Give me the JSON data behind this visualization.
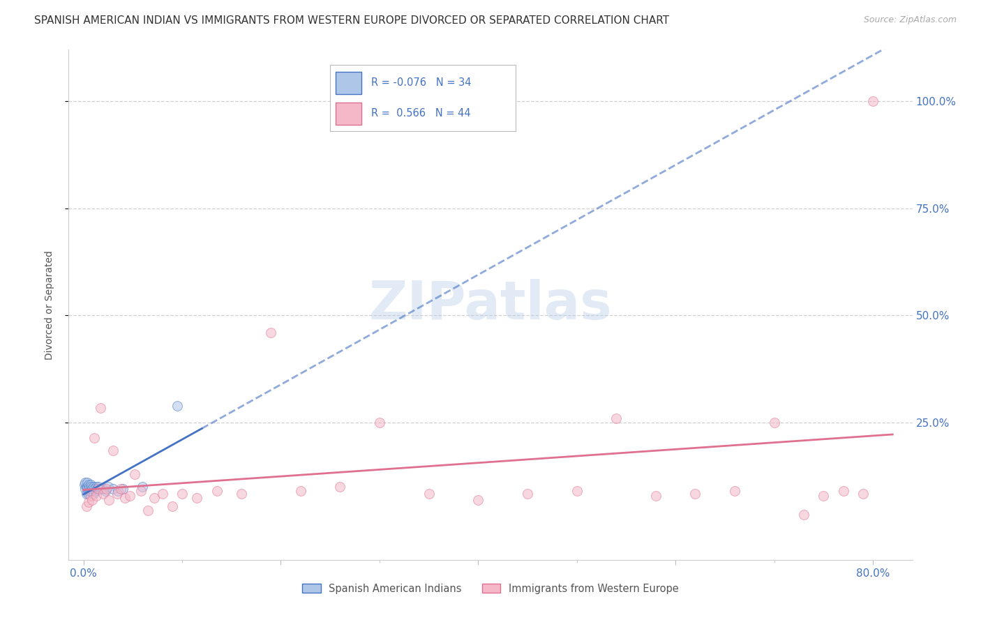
{
  "title": "SPANISH AMERICAN INDIAN VS IMMIGRANTS FROM WESTERN EUROPE DIVORCED OR SEPARATED CORRELATION CHART",
  "source": "Source: ZipAtlas.com",
  "ylabel": "Divorced or Separated",
  "legend_blue_r": "-0.076",
  "legend_blue_n": "34",
  "legend_pink_r": "0.566",
  "legend_pink_n": "44",
  "legend_label_blue": "Spanish American Indians",
  "legend_label_pink": "Immigrants from Western Europe",
  "background_color": "#ffffff",
  "watermark": "ZIPatlas",
  "blue_scatter_x": [
    0.001,
    0.002,
    0.002,
    0.003,
    0.003,
    0.004,
    0.004,
    0.004,
    0.005,
    0.005,
    0.005,
    0.006,
    0.006,
    0.007,
    0.007,
    0.008,
    0.008,
    0.009,
    0.01,
    0.01,
    0.011,
    0.012,
    0.013,
    0.014,
    0.015,
    0.017,
    0.019,
    0.022,
    0.025,
    0.03,
    0.035,
    0.04,
    0.06,
    0.095
  ],
  "blue_scatter_y": [
    0.105,
    0.095,
    0.11,
    0.085,
    0.1,
    0.095,
    0.1,
    0.11,
    0.085,
    0.09,
    0.105,
    0.095,
    0.1,
    0.09,
    0.105,
    0.095,
    0.1,
    0.095,
    0.085,
    0.1,
    0.095,
    0.09,
    0.1,
    0.095,
    0.1,
    0.095,
    0.095,
    0.09,
    0.1,
    0.095,
    0.09,
    0.095,
    0.1,
    0.29
  ],
  "pink_scatter_x": [
    0.003,
    0.005,
    0.007,
    0.009,
    0.011,
    0.013,
    0.015,
    0.017,
    0.02,
    0.023,
    0.026,
    0.03,
    0.034,
    0.038,
    0.042,
    0.047,
    0.052,
    0.058,
    0.065,
    0.072,
    0.08,
    0.09,
    0.1,
    0.115,
    0.135,
    0.16,
    0.19,
    0.22,
    0.26,
    0.3,
    0.35,
    0.4,
    0.45,
    0.5,
    0.54,
    0.58,
    0.62,
    0.66,
    0.7,
    0.73,
    0.75,
    0.77,
    0.79,
    0.8
  ],
  "pink_scatter_y": [
    0.055,
    0.065,
    0.08,
    0.07,
    0.215,
    0.08,
    0.095,
    0.285,
    0.085,
    0.095,
    0.07,
    0.185,
    0.085,
    0.095,
    0.075,
    0.08,
    0.13,
    0.09,
    0.045,
    0.075,
    0.085,
    0.055,
    0.085,
    0.075,
    0.09,
    0.085,
    0.46,
    0.09,
    0.1,
    0.25,
    0.085,
    0.07,
    0.085,
    0.09,
    0.26,
    0.08,
    0.085,
    0.09,
    0.25,
    0.035,
    0.08,
    0.09,
    0.085,
    1.0
  ],
  "blue_line_color": "#4472c4",
  "pink_line_color": "#e07090",
  "blue_marker_facecolor": "#aec6e8",
  "pink_marker_facecolor": "#f4b8c8",
  "blue_trend_start_x": 0.0,
  "blue_trend_end_x": 0.8,
  "pink_trend_start_x": 0.0,
  "pink_trend_end_x": 0.8,
  "xmin": -0.015,
  "xmax": 0.84,
  "ymin": -0.07,
  "ymax": 1.12,
  "yticks": [
    0.25,
    0.5,
    0.75,
    1.0
  ],
  "ytick_labels": [
    "25.0%",
    "50.0%",
    "75.0%",
    "100.0%"
  ],
  "xtick_positions": [
    0.0,
    0.2,
    0.4,
    0.6,
    0.8
  ],
  "xtick_labels": [
    "0.0%",
    "",
    "",
    "",
    "80.0%"
  ],
  "tick_color": "#4472c4",
  "grid_color": "#d0d0d0",
  "title_fontsize": 11,
  "source_fontsize": 9,
  "axis_label_fontsize": 10,
  "tick_fontsize": 11,
  "marker_size": 100,
  "marker_alpha": 0.55,
  "marker_linewidth": 0.7,
  "trend_linewidth": 2.0
}
